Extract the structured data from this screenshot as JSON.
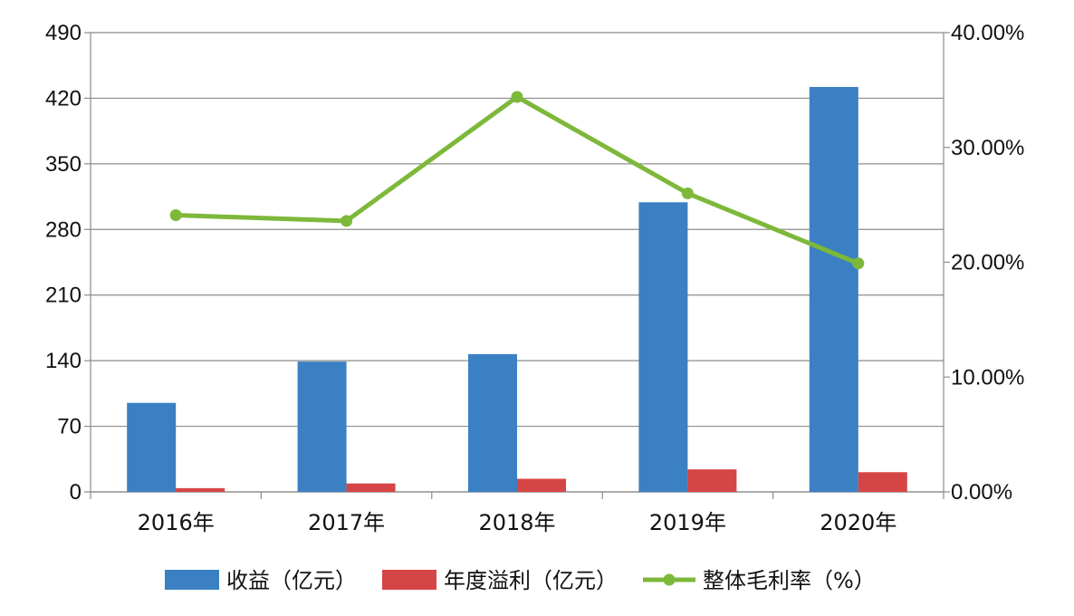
{
  "chart_data": {
    "type": "bar",
    "categories": [
      "2016年",
      "2017年",
      "2018年",
      "2019年",
      "2020年"
    ],
    "series": [
      {
        "name": "收益（亿元）",
        "type": "bar",
        "axis": "left",
        "color": "#3b80c3",
        "values": [
          95,
          139,
          147,
          309,
          432
        ]
      },
      {
        "name": "年度溢利（亿元）",
        "type": "bar",
        "axis": "left",
        "color": "#d64545",
        "values": [
          4,
          9,
          14,
          24,
          21
        ]
      },
      {
        "name": "整体毛利率（%）",
        "type": "line",
        "axis": "right",
        "color": "#7db83a",
        "values": [
          24.1,
          23.6,
          34.4,
          26.0,
          19.9
        ]
      }
    ],
    "y_left": {
      "min": 0,
      "max": 490,
      "ticks": [
        "0",
        "70",
        "140",
        "210",
        "280",
        "350",
        "420",
        "490"
      ]
    },
    "y_right": {
      "min": 0,
      "max": 40,
      "ticks": [
        "0.00%",
        "10.00%",
        "20.00%",
        "30.00%",
        "40.00%"
      ]
    },
    "grid": true,
    "legend": "bottom"
  }
}
